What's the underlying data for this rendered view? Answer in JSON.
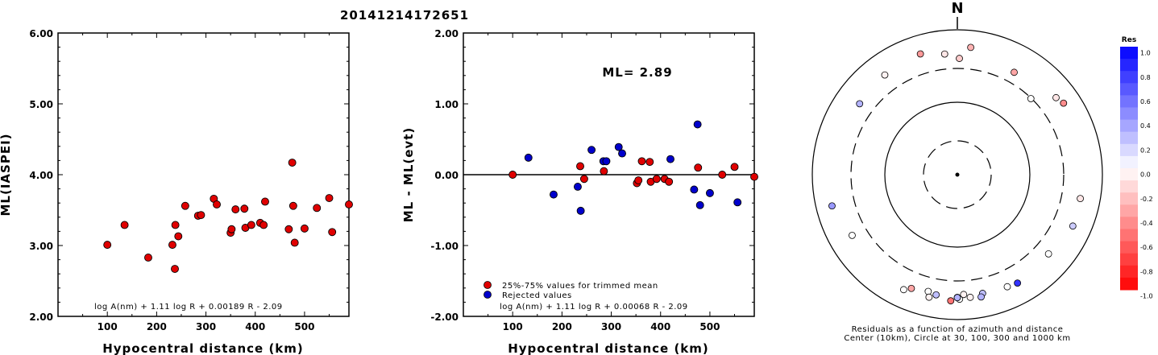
{
  "title": "20141214172651",
  "chart_data": [
    {
      "type": "scatter",
      "id": "ml-vs-distance",
      "xlabel": "Hypocentral distance (km)",
      "ylabel": "ML(IASPEI)",
      "xlim": [
        0,
        590
      ],
      "ylim": [
        2.0,
        6.0
      ],
      "xticks": [
        100,
        200,
        300,
        400,
        500
      ],
      "yticks": [
        "2.00",
        "3.00",
        "4.00",
        "5.00",
        "6.00"
      ],
      "formula": "log A(nm) + 1.11 log R + 0.00189 R - 2.09",
      "series": [
        {
          "color": "#e00000",
          "points": [
            [
              100,
              3.01
            ],
            [
              135,
              3.29
            ],
            [
              183,
              2.83
            ],
            [
              232,
              3.01
            ],
            [
              237,
              2.67
            ],
            [
              238,
              3.29
            ],
            [
              244,
              3.13
            ],
            [
              258,
              3.56
            ],
            [
              284,
              3.42
            ],
            [
              290,
              3.43
            ],
            [
              316,
              3.66
            ],
            [
              322,
              3.58
            ],
            [
              350,
              3.18
            ],
            [
              352,
              3.23
            ],
            [
              360,
              3.51
            ],
            [
              378,
              3.52
            ],
            [
              380,
              3.25
            ],
            [
              392,
              3.29
            ],
            [
              410,
              3.32
            ],
            [
              417,
              3.29
            ],
            [
              420,
              3.62
            ],
            [
              468,
              3.23
            ],
            [
              475,
              4.17
            ],
            [
              477,
              3.56
            ],
            [
              480,
              3.04
            ],
            [
              500,
              3.24
            ],
            [
              525,
              3.53
            ],
            [
              550,
              3.67
            ],
            [
              556,
              3.19
            ],
            [
              590,
              3.58
            ]
          ]
        }
      ]
    },
    {
      "type": "scatter",
      "id": "residual-vs-distance",
      "xlabel": "Hypocentral distance (km)",
      "ylabel": "ML - ML(evt)",
      "xlim": [
        0,
        590
      ],
      "ylim": [
        -2.0,
        2.0
      ],
      "xticks": [
        100,
        200,
        300,
        400,
        500
      ],
      "yticks": [
        "-2.00",
        "-1.00",
        "0.00",
        "1.00",
        "2.00"
      ],
      "annotation": "ML= 2.89",
      "formula": "log A(nm) + 1.11 log R + 0.00068 R - 2.09",
      "legend_position": "bottom-left",
      "series": [
        {
          "name": "25%-75% values for trimmed mean",
          "color": "#e00000",
          "points": [
            [
              100,
              0.0
            ],
            [
              237,
              0.12
            ],
            [
              245,
              -0.06
            ],
            [
              285,
              0.05
            ],
            [
              352,
              -0.12
            ],
            [
              355,
              -0.08
            ],
            [
              362,
              0.19
            ],
            [
              378,
              0.18
            ],
            [
              380,
              -0.1
            ],
            [
              392,
              -0.06
            ],
            [
              408,
              -0.06
            ],
            [
              417,
              -0.1
            ],
            [
              476,
              0.1
            ],
            [
              525,
              0.0
            ],
            [
              550,
              0.11
            ],
            [
              590,
              -0.03
            ]
          ]
        },
        {
          "name": "Rejected values",
          "color": "#0000cc",
          "points": [
            [
              132,
              0.24
            ],
            [
              183,
              -0.28
            ],
            [
              232,
              -0.17
            ],
            [
              238,
              -0.51
            ],
            [
              260,
              0.35
            ],
            [
              284,
              0.19
            ],
            [
              290,
              0.19
            ],
            [
              315,
              0.39
            ],
            [
              322,
              0.3
            ],
            [
              420,
              0.22
            ],
            [
              468,
              -0.21
            ],
            [
              475,
              0.71
            ],
            [
              480,
              -0.43
            ],
            [
              500,
              -0.26
            ],
            [
              556,
              -0.39
            ]
          ]
        }
      ]
    },
    {
      "type": "scatter",
      "id": "residual-polar",
      "projection": "polar",
      "north_label": "N",
      "caption": [
        "Residuals as a function of azimuth and distance",
        "Center (10km), Circle at 30, 100, 300 and 1000 km"
      ],
      "rings_km": [
        30,
        100,
        300,
        1000
      ],
      "dashed_rings_km": [
        30,
        300
      ],
      "center_km": 10,
      "colorbar": {
        "title": "Res",
        "range": [
          -1.0,
          1.0
        ],
        "ticks": [
          "1.0",
          "0.8",
          "0.6",
          "0.4",
          "0.2",
          "0.0",
          "-0.2",
          "-0.4",
          "-0.6",
          "-0.8",
          "-1.0"
        ]
      },
      "points": [
        {
          "azimuth": 1,
          "distance_km": 410,
          "residual": -0.2
        },
        {
          "azimuth": 6,
          "distance_km": 590,
          "residual": -0.3
        },
        {
          "azimuth": 354,
          "distance_km": 480,
          "residual": -0.1
        },
        {
          "azimuth": 343,
          "distance_km": 560,
          "residual": -0.4
        },
        {
          "azimuth": 324,
          "distance_km": 510,
          "residual": -0.05
        },
        {
          "azimuth": 306,
          "distance_km": 470,
          "residual": 0.3
        },
        {
          "azimuth": 29,
          "distance_km": 420,
          "residual": -0.35
        },
        {
          "azimuth": 44,
          "distance_km": 295,
          "residual": 0.0
        },
        {
          "azimuth": 52,
          "distance_km": 540,
          "residual": -0.1
        },
        {
          "azimuth": 56,
          "distance_km": 590,
          "residual": -0.45
        },
        {
          "azimuth": 101,
          "distance_km": 540,
          "residual": -0.1
        },
        {
          "azimuth": 114,
          "distance_km": 560,
          "residual": 0.2
        },
        {
          "azimuth": 131,
          "distance_km": 470,
          "residual": 0.0
        },
        {
          "azimuth": 151,
          "distance_km": 520,
          "residual": 0.8
        },
        {
          "azimuth": 156,
          "distance_km": 500,
          "residual": 0.0
        },
        {
          "azimuth": 168,
          "distance_km": 480,
          "residual": 0.25
        },
        {
          "azimuth": 169,
          "distance_km": 530,
          "residual": 0.3
        },
        {
          "azimuth": 174,
          "distance_km": 510,
          "residual": -0.05
        },
        {
          "azimuth": 177,
          "distance_km": 460,
          "residual": -0.05
        },
        {
          "azimuth": 179,
          "distance_km": 530,
          "residual": 0.0
        },
        {
          "azimuth": 180,
          "distance_km": 500,
          "residual": 0.6
        },
        {
          "azimuth": 180,
          "distance_km": 505,
          "residual": 0.3
        },
        {
          "azimuth": 183,
          "distance_km": 560,
          "residual": -0.55
        },
        {
          "azimuth": 190,
          "distance_km": 490,
          "residual": 0.25
        },
        {
          "azimuth": 194,
          "distance_km": 465,
          "residual": 0.0
        },
        {
          "azimuth": 193,
          "distance_km": 550,
          "residual": -0.05
        },
        {
          "azimuth": 202,
          "distance_km": 500,
          "residual": -0.35
        },
        {
          "azimuth": 205,
          "distance_km": 570,
          "residual": 0.0
        },
        {
          "azimuth": 240,
          "distance_km": 480,
          "residual": 0.0
        },
        {
          "azimuth": 256,
          "distance_km": 610,
          "residual": 0.4
        }
      ]
    }
  ]
}
